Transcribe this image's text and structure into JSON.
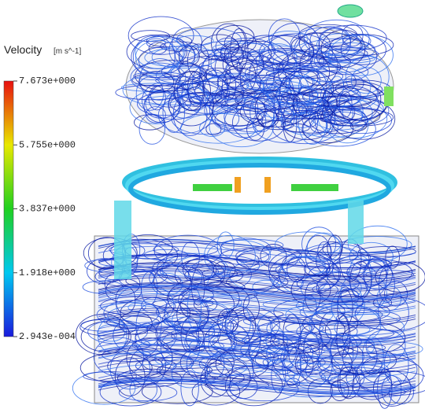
{
  "legend": {
    "title": "Velocity",
    "unit": "[m s^-1]",
    "ticks": [
      {
        "value": 7.673,
        "label": "7.673e+000"
      },
      {
        "value": 5.755,
        "label": "5.755e+000"
      },
      {
        "value": 3.837,
        "label": "3.837e+000"
      },
      {
        "value": 1.918,
        "label": "1.918e+000"
      },
      {
        "value": 0.0002943,
        "label": "2.943e-004"
      }
    ]
  }
}
